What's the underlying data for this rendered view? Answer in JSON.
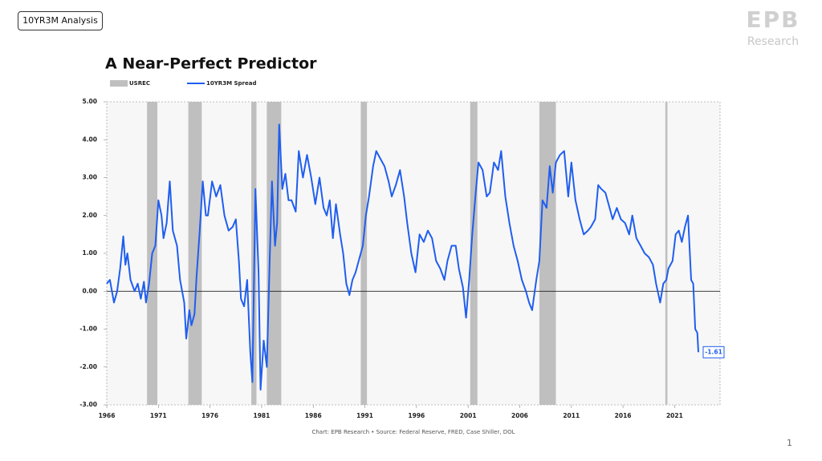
{
  "slide": {
    "tag": "10YR3M Analysis",
    "logo": "EPB",
    "logo_sub": "Research",
    "page_number": "1"
  },
  "chart_data": {
    "type": "line",
    "title": "A Near-Perfect Predictor",
    "source": "Chart: EPB Research •  Source: Federal Reserve, FRED, Case Shiller, DOL",
    "legend": "top-left",
    "xlim": [
      1966,
      2025.4
    ],
    "xticks": [
      1966,
      1971,
      1976,
      1981,
      1986,
      1991,
      1996,
      2001,
      2006,
      2011,
      2016,
      2021
    ],
    "ylim": [
      -3,
      5
    ],
    "yticks": [
      {
        "value": -3,
        "label": "-3.00"
      },
      {
        "value": -2,
        "label": "-2.00"
      },
      {
        "value": -1,
        "label": "-1.00"
      },
      {
        "value": 0,
        "label": "0.00"
      },
      {
        "value": 1,
        "label": "1.00"
      },
      {
        "value": 2,
        "label": "2.00"
      },
      {
        "value": 3,
        "label": "3.00"
      },
      {
        "value": 4,
        "label": "4.00"
      },
      {
        "value": 5,
        "label": "5.00"
      }
    ],
    "series": [
      {
        "name": "USREC",
        "color": "#bfbfbf",
        "ranges": [
          [
            1969.9,
            1970.9
          ],
          [
            1973.9,
            1975.2
          ],
          [
            1980.0,
            1980.5
          ],
          [
            1981.5,
            1982.9
          ],
          [
            1990.6,
            1991.2
          ],
          [
            2001.2,
            2001.9
          ],
          [
            2007.9,
            2009.5
          ],
          [
            2020.1,
            2020.3
          ]
        ]
      },
      {
        "name": "10YR3M Spread",
        "color": "#1f5ef0",
        "x": [
          1966.0,
          1966.3,
          1966.7,
          1967.0,
          1967.3,
          1967.6,
          1967.8,
          1968.0,
          1968.3,
          1968.7,
          1969.0,
          1969.3,
          1969.6,
          1969.8,
          1970.1,
          1970.4,
          1970.7,
          1971.0,
          1971.3,
          1971.5,
          1971.8,
          1972.1,
          1972.4,
          1972.8,
          1973.1,
          1973.5,
          1973.7,
          1974.0,
          1974.2,
          1974.5,
          1974.7,
          1975.0,
          1975.3,
          1975.6,
          1975.8,
          1976.2,
          1976.6,
          1977.0,
          1977.4,
          1977.8,
          1978.2,
          1978.5,
          1978.8,
          1979.0,
          1979.3,
          1979.6,
          1979.9,
          1980.1,
          1980.4,
          1980.7,
          1980.9,
          1981.2,
          1981.5,
          1981.8,
          1982.0,
          1982.3,
          1982.5,
          1982.7,
          1983.0,
          1983.3,
          1983.6,
          1983.9,
          1984.3,
          1984.6,
          1985.0,
          1985.4,
          1985.8,
          1986.2,
          1986.6,
          1987.0,
          1987.3,
          1987.6,
          1987.9,
          1988.2,
          1988.6,
          1988.9,
          1989.2,
          1989.5,
          1989.8,
          1990.1,
          1990.5,
          1990.8,
          1991.1,
          1991.4,
          1991.8,
          1992.1,
          1992.5,
          1992.9,
          1993.3,
          1993.6,
          1994.0,
          1994.4,
          1994.8,
          1995.1,
          1995.5,
          1995.9,
          1996.3,
          1996.7,
          1997.1,
          1997.5,
          1997.9,
          1998.3,
          1998.7,
          1999.0,
          1999.4,
          1999.8,
          2000.1,
          2000.5,
          2000.8,
          2001.1,
          2001.4,
          2001.7,
          2002.0,
          2002.4,
          2002.8,
          2003.1,
          2003.5,
          2003.9,
          2004.2,
          2004.6,
          2005.0,
          2005.4,
          2005.8,
          2006.2,
          2006.6,
          2006.9,
          2007.2,
          2007.6,
          2007.9,
          2008.2,
          2008.6,
          2008.9,
          2009.2,
          2009.5,
          2009.9,
          2010.3,
          2010.7,
          2011.0,
          2011.4,
          2011.8,
          2012.2,
          2012.6,
          2012.9,
          2013.3,
          2013.6,
          2013.9,
          2014.3,
          2014.7,
          2015.0,
          2015.4,
          2015.8,
          2016.2,
          2016.6,
          2016.9,
          2017.3,
          2017.7,
          2018.1,
          2018.5,
          2018.9,
          2019.2,
          2019.6,
          2019.9,
          2020.2,
          2020.4,
          2020.8,
          2021.1,
          2021.4,
          2021.7,
          2022.0,
          2022.3,
          2022.6,
          2022.8,
          2023.0,
          2023.2,
          2023.3
        ],
        "values": [
          0.2,
          0.3,
          -0.3,
          0.0,
          0.6,
          1.45,
          0.7,
          1.0,
          0.3,
          0.0,
          0.2,
          -0.2,
          0.25,
          -0.3,
          0.2,
          1.0,
          1.2,
          2.4,
          2.0,
          1.4,
          1.8,
          2.9,
          1.6,
          1.2,
          0.3,
          -0.3,
          -1.25,
          -0.5,
          -0.9,
          -0.6,
          0.4,
          1.6,
          2.9,
          2.0,
          2.0,
          2.9,
          2.5,
          2.8,
          2.0,
          1.6,
          1.7,
          1.9,
          0.8,
          -0.2,
          -0.4,
          0.3,
          -1.6,
          -2.4,
          2.7,
          0.5,
          -2.6,
          -1.3,
          -2.0,
          1.0,
          2.9,
          1.2,
          1.8,
          4.4,
          2.7,
          3.1,
          2.4,
          2.4,
          2.1,
          3.7,
          3.0,
          3.6,
          3.0,
          2.3,
          3.0,
          2.2,
          2.0,
          2.4,
          1.4,
          2.3,
          1.5,
          1.0,
          0.2,
          -0.1,
          0.3,
          0.5,
          0.9,
          1.2,
          2.0,
          2.5,
          3.3,
          3.7,
          3.5,
          3.3,
          2.9,
          2.5,
          2.8,
          3.2,
          2.5,
          1.8,
          1.0,
          0.5,
          1.5,
          1.3,
          1.6,
          1.4,
          0.8,
          0.6,
          0.3,
          0.8,
          1.2,
          1.2,
          0.6,
          0.1,
          -0.7,
          0.3,
          1.5,
          2.5,
          3.4,
          3.2,
          2.5,
          2.6,
          3.4,
          3.2,
          3.7,
          2.5,
          1.8,
          1.2,
          0.8,
          0.3,
          0.0,
          -0.3,
          -0.5,
          0.3,
          0.8,
          2.4,
          2.2,
          3.3,
          2.6,
          3.4,
          3.6,
          3.7,
          2.5,
          3.4,
          2.4,
          1.9,
          1.5,
          1.6,
          1.7,
          1.9,
          2.8,
          2.7,
          2.6,
          2.2,
          1.9,
          2.2,
          1.9,
          1.8,
          1.5,
          2.0,
          1.4,
          1.2,
          1.0,
          0.9,
          0.7,
          0.2,
          -0.3,
          0.2,
          0.3,
          0.6,
          0.8,
          1.5,
          1.6,
          1.3,
          1.7,
          2.0,
          0.3,
          0.2,
          -1.0,
          -1.1,
          -1.61
        ]
      }
    ]
  }
}
